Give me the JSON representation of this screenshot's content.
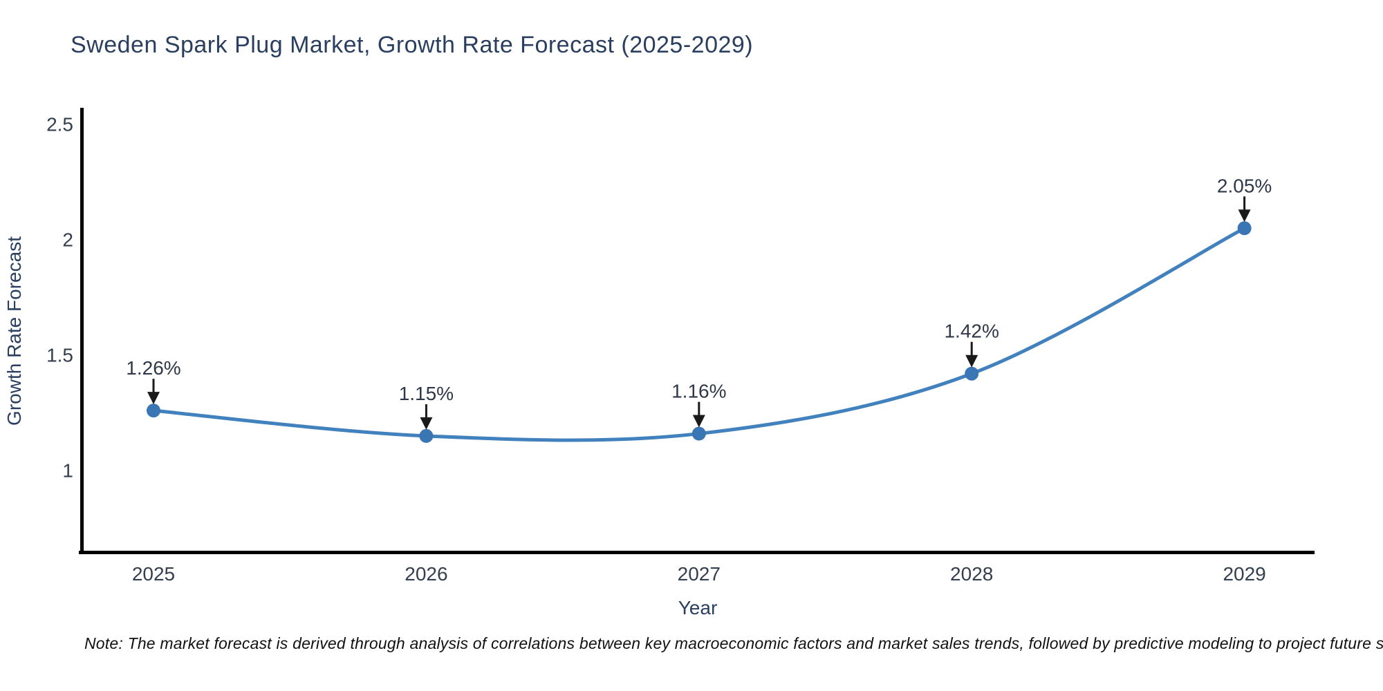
{
  "title": "Sweden Spark Plug Market, Growth Rate Forecast (2025-2029)",
  "note": "Note: The market forecast is derived through analysis of correlations between key macroeconomic factors and market sales trends, followed by predictive modeling to project future sales",
  "chart_data": {
    "type": "line",
    "title": "Sweden Spark Plug Market, Growth Rate Forecast (2025-2029)",
    "x": [
      2025,
      2026,
      2027,
      2028,
      2029
    ],
    "series": [
      {
        "name": "Growth Rate Forecast",
        "values": [
          1.26,
          1.15,
          1.16,
          1.42,
          2.05
        ],
        "point_labels": [
          "1.26%",
          "1.15%",
          "1.16%",
          "1.42%",
          "2.05%"
        ]
      }
    ],
    "xlabel": "Year",
    "ylabel": "Growth Rate Forecast",
    "yticks": [
      1,
      1.5,
      2,
      2.5
    ],
    "xticks": [
      "2025",
      "2026",
      "2027",
      "2028",
      "2029"
    ],
    "ylim": [
      0.645,
      2.57
    ],
    "grid": false,
    "legend_position": "none",
    "smooth": true,
    "annotations_style": "value label with down arrow to point"
  },
  "colors": {
    "background": "#ffffff",
    "line": "#4181bd",
    "marker": "#3a76b4",
    "axis": "#000000",
    "title": "#2a3f5f",
    "tick_label": "#333f4f",
    "axis_title": "#2a3f5f",
    "annotation_text": "#2e3848",
    "annotation_arrow": "#1a1a1a",
    "note_text": "#111111"
  }
}
